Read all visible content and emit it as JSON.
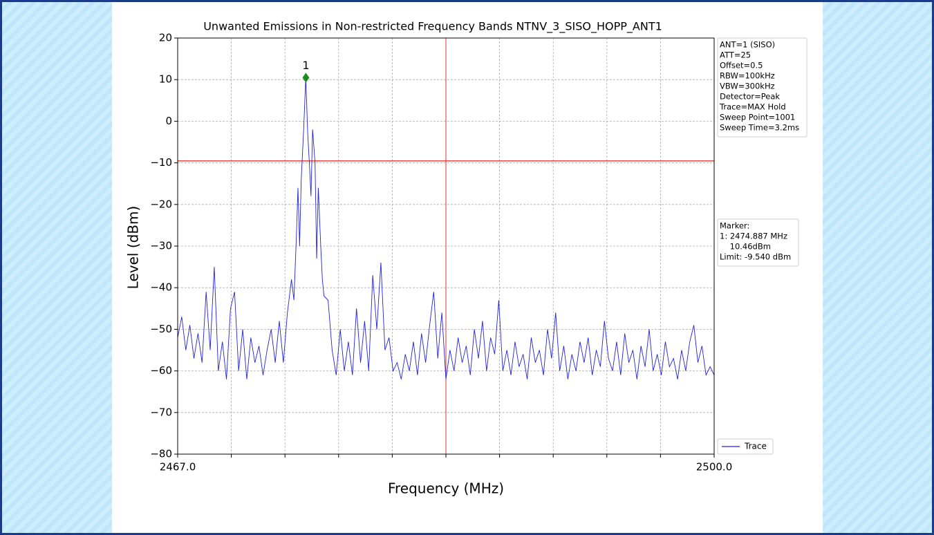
{
  "chart_data": {
    "type": "line",
    "title": "Unwanted Emissions in Non-restricted Frequency Bands NTNV_3_SISO_HOPP_ANT1",
    "x_label": "Frequency (MHz)",
    "y_label": "Level (dBm)",
    "xlim": [
      2467,
      2500
    ],
    "xticks": [
      {
        "value": 2467,
        "label": "2467.0"
      },
      {
        "value": 2500,
        "label": "2500.0"
      }
    ],
    "xgrid_ticks": [
      2470.3,
      2473.6,
      2476.9,
      2480.2,
      2483.5,
      2486.8,
      2490.1,
      2493.4,
      2496.7
    ],
    "ylim": [
      -80,
      20
    ],
    "yticks": [
      {
        "value": -80,
        "label": "−80"
      },
      {
        "value": -70,
        "label": "−70"
      },
      {
        "value": -60,
        "label": "−60"
      },
      {
        "value": -50,
        "label": "−50"
      },
      {
        "value": -40,
        "label": "−40"
      },
      {
        "value": -30,
        "label": "−30"
      },
      {
        "value": -20,
        "label": "−20"
      },
      {
        "value": -10,
        "label": "−10"
      },
      0,
      10,
      20
    ],
    "grid": true,
    "limit": -9.54,
    "limit_color": "#e03030",
    "center_line": 2483.5,
    "marker": {
      "label": "1",
      "x": 2474.887,
      "y": 10.46,
      "color": "#1a8a1a"
    },
    "info_lines": [
      "ANT=1 (SISO)",
      "ATT=25",
      "Offset=0.5",
      "RBW=100kHz",
      "VBW=300kHz",
      "Detector=Peak",
      "Trace=MAX Hold",
      "Sweep Point=1001",
      "Sweep Time=3.2ms"
    ],
    "marker_lines": [
      "Marker:",
      "1: 2474.887 MHz",
      "    10.46dBm",
      "Limit: -9.540 dBm"
    ],
    "legend_position": "lower right",
    "series": [
      {
        "name": "Trace",
        "color": "#2020e0",
        "x": [
          2467.0,
          2467.25,
          2467.5,
          2467.75,
          2468.0,
          2468.25,
          2468.5,
          2468.75,
          2469.0,
          2469.25,
          2469.5,
          2469.75,
          2470.0,
          2470.25,
          2470.5,
          2470.75,
          2471.0,
          2471.25,
          2471.5,
          2471.75,
          2472.0,
          2472.25,
          2472.5,
          2472.75,
          2473.0,
          2473.25,
          2473.5,
          2473.75,
          2474.0,
          2474.15,
          2474.3,
          2474.4,
          2474.5,
          2474.6,
          2474.75,
          2474.88,
          2475.0,
          2475.1,
          2475.2,
          2475.3,
          2475.45,
          2475.55,
          2475.65,
          2475.8,
          2475.9,
          2476.0,
          2476.25,
          2476.5,
          2476.75,
          2477.0,
          2477.25,
          2477.5,
          2477.75,
          2478.0,
          2478.25,
          2478.5,
          2478.75,
          2479.0,
          2479.25,
          2479.5,
          2479.75,
          2480.0,
          2480.25,
          2480.5,
          2480.75,
          2481.0,
          2481.25,
          2481.5,
          2481.75,
          2482.0,
          2482.25,
          2482.5,
          2482.75,
          2483.0,
          2483.25,
          2483.5,
          2483.75,
          2484.0,
          2484.25,
          2484.5,
          2484.75,
          2485.0,
          2485.25,
          2485.5,
          2485.75,
          2486.0,
          2486.25,
          2486.5,
          2486.75,
          2487.0,
          2487.25,
          2487.5,
          2487.75,
          2488.0,
          2488.25,
          2488.5,
          2488.75,
          2489.0,
          2489.25,
          2489.5,
          2489.75,
          2490.0,
          2490.25,
          2490.5,
          2490.75,
          2491.0,
          2491.25,
          2491.5,
          2491.75,
          2492.0,
          2492.25,
          2492.5,
          2492.75,
          2493.0,
          2493.25,
          2493.5,
          2493.75,
          2494.0,
          2494.25,
          2494.5,
          2494.75,
          2495.0,
          2495.25,
          2495.5,
          2495.75,
          2496.0,
          2496.25,
          2496.5,
          2496.75,
          2497.0,
          2497.25,
          2497.5,
          2497.75,
          2498.0,
          2498.25,
          2498.5,
          2498.75,
          2499.0,
          2499.25,
          2499.5,
          2499.75,
          2500.0
        ],
        "values": [
          -52,
          -47,
          -55,
          -49,
          -57,
          -51,
          -58,
          -41,
          -55,
          -35,
          -60,
          -53,
          -62,
          -45,
          -41,
          -60,
          -50,
          -62,
          -52,
          -58,
          -54,
          -61,
          -55,
          -50,
          -58,
          -48,
          -58,
          -46,
          -38,
          -43,
          -28,
          -16,
          -30,
          -14,
          -2,
          10.46,
          -3,
          -10,
          -18,
          -2,
          -10,
          -33,
          -16,
          -30,
          -38,
          -42,
          -43,
          -55,
          -61,
          -50,
          -60,
          -53,
          -61,
          -45,
          -58,
          -48,
          -60,
          -37,
          -50,
          -34,
          -55,
          -52,
          -60,
          -58,
          -62,
          -56,
          -60,
          -53,
          -61,
          -51,
          -58,
          -49,
          -41,
          -57,
          -46,
          -62,
          -55,
          -60,
          -52,
          -58,
          -54,
          -61,
          -50,
          -57,
          -48,
          -60,
          -52,
          -56,
          -43,
          -60,
          -55,
          -61,
          -53,
          -59,
          -56,
          -62,
          -52,
          -58,
          -55,
          -61,
          -50,
          -57,
          -46,
          -60,
          -54,
          -62,
          -56,
          -60,
          -53,
          -58,
          -52,
          -61,
          -55,
          -59,
          -48,
          -57,
          -60,
          -53,
          -61,
          -51,
          -58,
          -55,
          -62,
          -54,
          -59,
          -50,
          -60,
          -56,
          -61,
          -53,
          -59,
          -57,
          -62,
          -55,
          -60,
          -53,
          -49,
          -58,
          -54,
          -61,
          -59,
          -61
        ]
      }
    ]
  }
}
